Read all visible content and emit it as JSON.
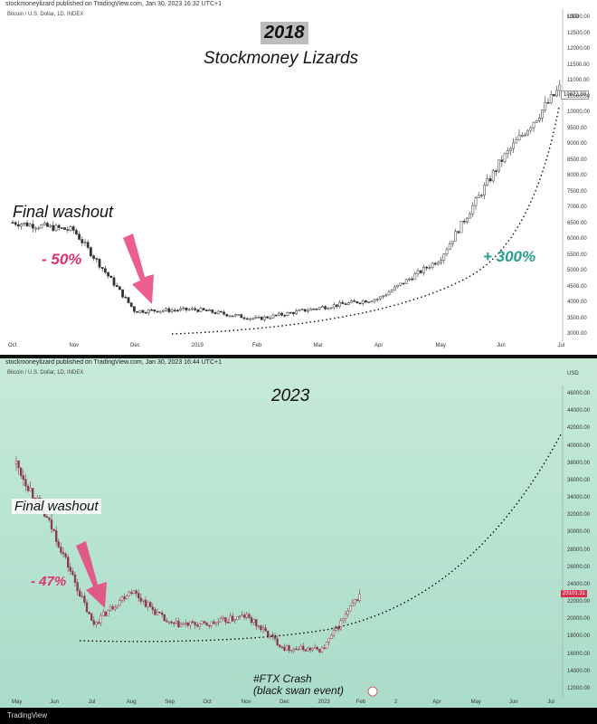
{
  "chart_data": [
    {
      "type": "candlestick",
      "header": "stockmoneylizard published on TradingView.com, Jan 30, 2023 16:32 UTC+1",
      "symbol": "Bitcoin / U.S. Dollar, 1D, INDEX",
      "title": "2018",
      "subtitle": "Stockmoney Lizards",
      "currency": "USD",
      "last_price_label": "10872.30",
      "ylim": [
        3000,
        13000
      ],
      "yticks": [
        "13000.00",
        "12500.00",
        "12000.00",
        "11500.00",
        "11000.00",
        "10500.00",
        "10000.00",
        "9500.00",
        "9000.00",
        "8500.00",
        "8000.00",
        "7500.00",
        "7000.00",
        "6500.00",
        "6000.00",
        "5500.00",
        "5000.00",
        "4500.00",
        "4000.00",
        "3500.00",
        "3000.00"
      ],
      "xticks": [
        "Oct",
        "Nov",
        "Dec",
        "2019",
        "Feb",
        "Mar",
        "Apr",
        "May",
        "Jun",
        "Jul"
      ],
      "x": [
        "Oct",
        "Nov",
        "Dec",
        "2019",
        "Feb",
        "Mar",
        "Apr",
        "May",
        "Jun",
        "Jul"
      ],
      "close": [
        6550,
        6300,
        3750,
        3800,
        3500,
        3850,
        4150,
        5400,
        8500,
        10872
      ],
      "annotations": {
        "washout": "Final washout",
        "drop": "- 50%",
        "rise": "+ 300%"
      }
    },
    {
      "type": "candlestick",
      "header": "stockmoneylizard published on TradingView.com, Jan 30, 2023 16:44 UTC+1",
      "symbol": "Bitcoin / U.S. Dollar, 1D, INDEX",
      "title": "2023",
      "currency": "USD",
      "last_price_label": "23101.31",
      "ylim": [
        12000,
        46000
      ],
      "yticks": [
        "46000.00",
        "44000.00",
        "42000.00",
        "40000.00",
        "38000.00",
        "36000.00",
        "34000.00",
        "32000.00",
        "30000.00",
        "28000.00",
        "26000.00",
        "24000.00",
        "22000.00",
        "20000.00",
        "18000.00",
        "16000.00",
        "14000.00",
        "12000.00"
      ],
      "xticks": [
        "May",
        "Jun",
        "Jul",
        "Aug",
        "Sep",
        "Oct",
        "Nov",
        "Dec",
        "2023",
        "Feb",
        "2",
        "Apr",
        "May",
        "Jun",
        "Jul"
      ],
      "x": [
        "May",
        "Jun",
        "Jul",
        "Aug",
        "Sep",
        "Oct",
        "Nov",
        "Dec",
        "2023",
        "Feb"
      ],
      "close": [
        38000,
        30000,
        19500,
        23500,
        19500,
        19500,
        20500,
        16800,
        16600,
        23100
      ],
      "annotations": {
        "washout": "Final washout",
        "drop": "- 47%",
        "event": [
          "#FTX Crash",
          "(black swan event)"
        ]
      }
    }
  ],
  "colors": {
    "up": "#333333",
    "down": "#333333",
    "arrow": "#e8427a",
    "drop_text": "#e0306e",
    "rise_text": "#2a9d8f",
    "candle2": "#8a3a4a"
  },
  "footer": {
    "brand": "TradingView"
  }
}
